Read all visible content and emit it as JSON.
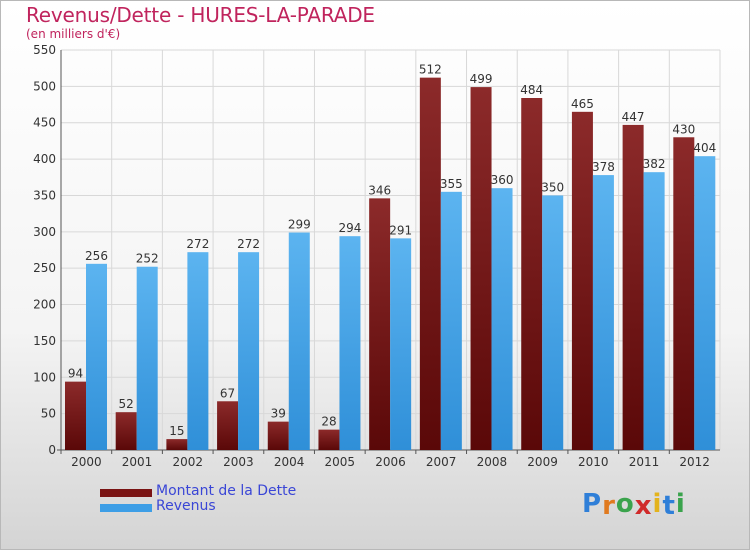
{
  "header": {
    "title": "Revenus/Dette - HURES-LA-PARADE",
    "subtitle": "(en milliers d'€)"
  },
  "legend": {
    "items": [
      {
        "label": "Montant de la Dette",
        "color": "#7a1414"
      },
      {
        "label": "Revenus",
        "color": "#3d9ee6"
      }
    ]
  },
  "logo": {
    "text": "Proxiti",
    "colors": [
      "#2f7fd8",
      "#e07a1f",
      "#3aa34c",
      "#d02a2a",
      "#e3b31d",
      "#2f7fd8",
      "#3aa34c"
    ]
  },
  "chart_data": {
    "type": "bar",
    "categories": [
      "2000",
      "2001",
      "2002",
      "2003",
      "2004",
      "2005",
      "2006",
      "2007",
      "2008",
      "2009",
      "2010",
      "2011",
      "2012"
    ],
    "series": [
      {
        "name": "Montant de la Dette",
        "color": "#7a1414",
        "values": [
          94,
          52,
          15,
          67,
          39,
          28,
          346,
          512,
          499,
          484,
          465,
          447,
          430
        ]
      },
      {
        "name": "Revenus",
        "color": "#3d9ee6",
        "values": [
          256,
          252,
          272,
          272,
          299,
          294,
          291,
          355,
          360,
          350,
          378,
          382,
          404
        ]
      }
    ],
    "ylim": [
      0,
      550
    ],
    "yticks": [
      0,
      50,
      100,
      150,
      200,
      250,
      300,
      350,
      400,
      450,
      500,
      550
    ],
    "grid": true,
    "legend_position": "bottom-left"
  }
}
